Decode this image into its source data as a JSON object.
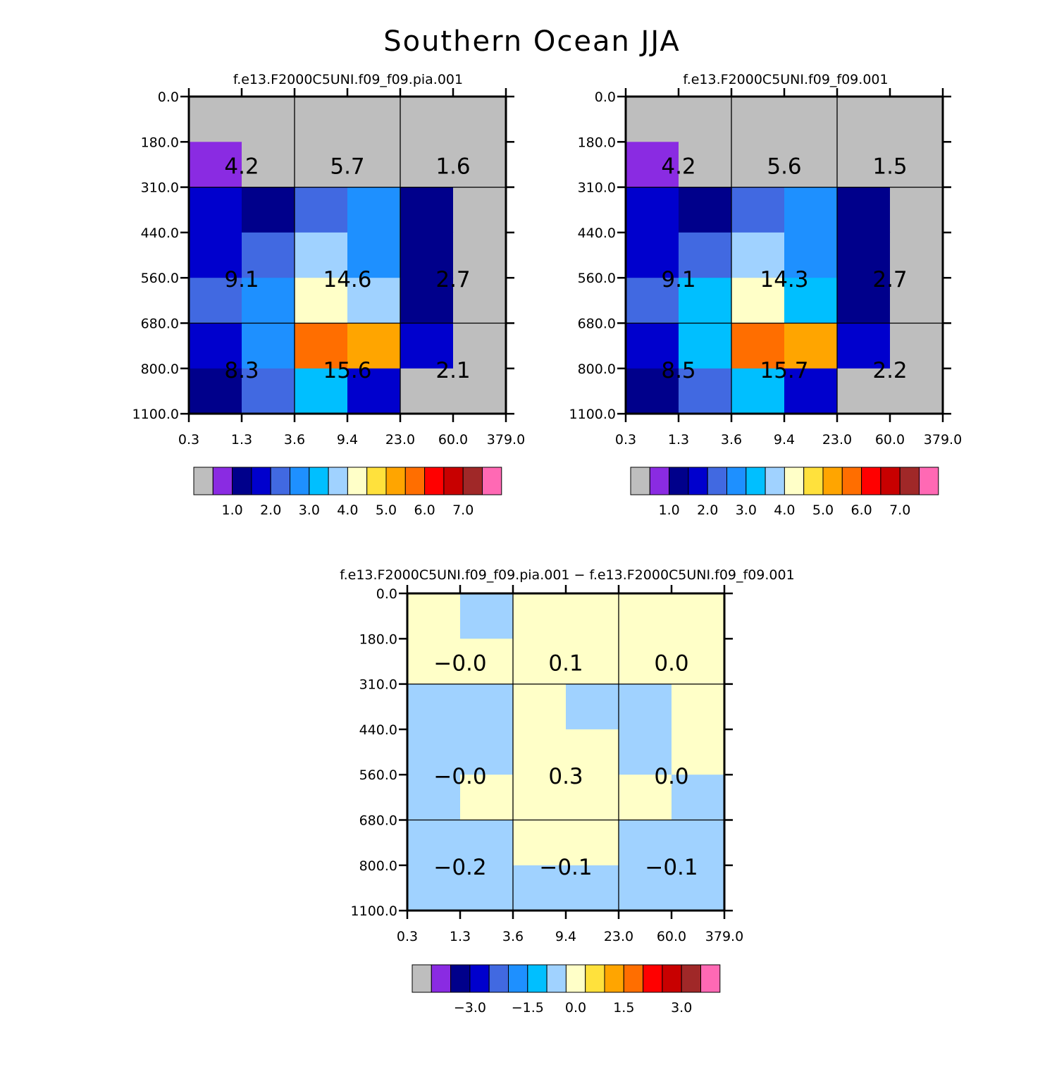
{
  "page_title": "Southern Ocean JJA",
  "colors": {
    "missing": "#bebebe",
    "palette": [
      "#bebebe",
      "#8a2be2",
      "#00008b",
      "#0000cd",
      "#4169e1",
      "#1e90ff",
      "#00bfff",
      "#a0d2ff",
      "#ffffc8",
      "#ffe13c",
      "#ffa500",
      "#ff6e00",
      "#ff0000",
      "#c80000",
      "#a02828",
      "#ff69b4"
    ]
  },
  "chart_data": [
    {
      "type": "heatmap",
      "title": "f.e13.F2000C5UNI.f09_f09.pia.001",
      "x_ticks": [
        "0.3",
        "1.3",
        "3.6",
        "9.4",
        "23.0",
        "60.0",
        "379.0"
      ],
      "y_ticks": [
        "0.0",
        "180.0",
        "310.0",
        "440.0",
        "560.0",
        "680.0",
        "800.0",
        "1100.0"
      ],
      "cells": [
        [
          0,
          0,
          0,
          0,
          0,
          0
        ],
        [
          1,
          0,
          0,
          0,
          0,
          0
        ],
        [
          3,
          2,
          4,
          5,
          2,
          0
        ],
        [
          3,
          4,
          7,
          5,
          2,
          0
        ],
        [
          4,
          5,
          8,
          7,
          2,
          0
        ],
        [
          3,
          5,
          11,
          10,
          3,
          0
        ],
        [
          2,
          4,
          6,
          3,
          0,
          0
        ]
      ],
      "totals": [
        [
          "4.2",
          "5.7",
          "1.6"
        ],
        [
          "9.1",
          "14.6",
          "2.7"
        ],
        [
          "8.3",
          "15.6",
          "2.1"
        ]
      ],
      "colorbar_labels": [
        "1.0",
        "2.0",
        "3.0",
        "4.0",
        "5.0",
        "6.0",
        "7.0"
      ]
    },
    {
      "type": "heatmap",
      "title": "f.e13.F2000C5UNI.f09_f09.001",
      "x_ticks": [
        "0.3",
        "1.3",
        "3.6",
        "9.4",
        "23.0",
        "60.0",
        "379.0"
      ],
      "y_ticks": [
        "0.0",
        "180.0",
        "310.0",
        "440.0",
        "560.0",
        "680.0",
        "800.0",
        "1100.0"
      ],
      "cells": [
        [
          0,
          0,
          0,
          0,
          0,
          0
        ],
        [
          1,
          0,
          0,
          0,
          0,
          0
        ],
        [
          3,
          2,
          4,
          5,
          2,
          0
        ],
        [
          3,
          4,
          7,
          5,
          2,
          0
        ],
        [
          4,
          6,
          8,
          6,
          2,
          0
        ],
        [
          3,
          6,
          11,
          10,
          3,
          0
        ],
        [
          2,
          4,
          6,
          3,
          0,
          0
        ]
      ],
      "totals": [
        [
          "4.2",
          "5.6",
          "1.5"
        ],
        [
          "9.1",
          "14.3",
          "2.7"
        ],
        [
          "8.5",
          "15.7",
          "2.2"
        ]
      ],
      "colorbar_labels": [
        "1.0",
        "2.0",
        "3.0",
        "4.0",
        "5.0",
        "6.0",
        "7.0"
      ]
    },
    {
      "type": "heatmap",
      "title": "f.e13.F2000C5UNI.f09_f09.pia.001 − f.e13.F2000C5UNI.f09_f09.001",
      "x_ticks": [
        "0.3",
        "1.3",
        "3.6",
        "9.4",
        "23.0",
        "60.0",
        "379.0"
      ],
      "y_ticks": [
        "0.0",
        "180.0",
        "310.0",
        "440.0",
        "560.0",
        "680.0",
        "800.0",
        "1100.0"
      ],
      "cells": [
        [
          8,
          7,
          8,
          8,
          8,
          8
        ],
        [
          8,
          8,
          8,
          8,
          8,
          8
        ],
        [
          7,
          7,
          8,
          7,
          7,
          8
        ],
        [
          7,
          7,
          8,
          8,
          7,
          8
        ],
        [
          7,
          8,
          8,
          8,
          8,
          7
        ],
        [
          7,
          7,
          8,
          8,
          7,
          7
        ],
        [
          7,
          7,
          7,
          7,
          7,
          7
        ]
      ],
      "totals": [
        [
          "−0.0",
          "0.1",
          "0.0"
        ],
        [
          "−0.0",
          "0.3",
          "0.0"
        ],
        [
          "−0.2",
          "−0.1",
          "−0.1"
        ]
      ],
      "colorbar_labels": [
        "−3.0",
        "−1.5",
        "0.0",
        "1.5",
        "3.0"
      ]
    }
  ]
}
